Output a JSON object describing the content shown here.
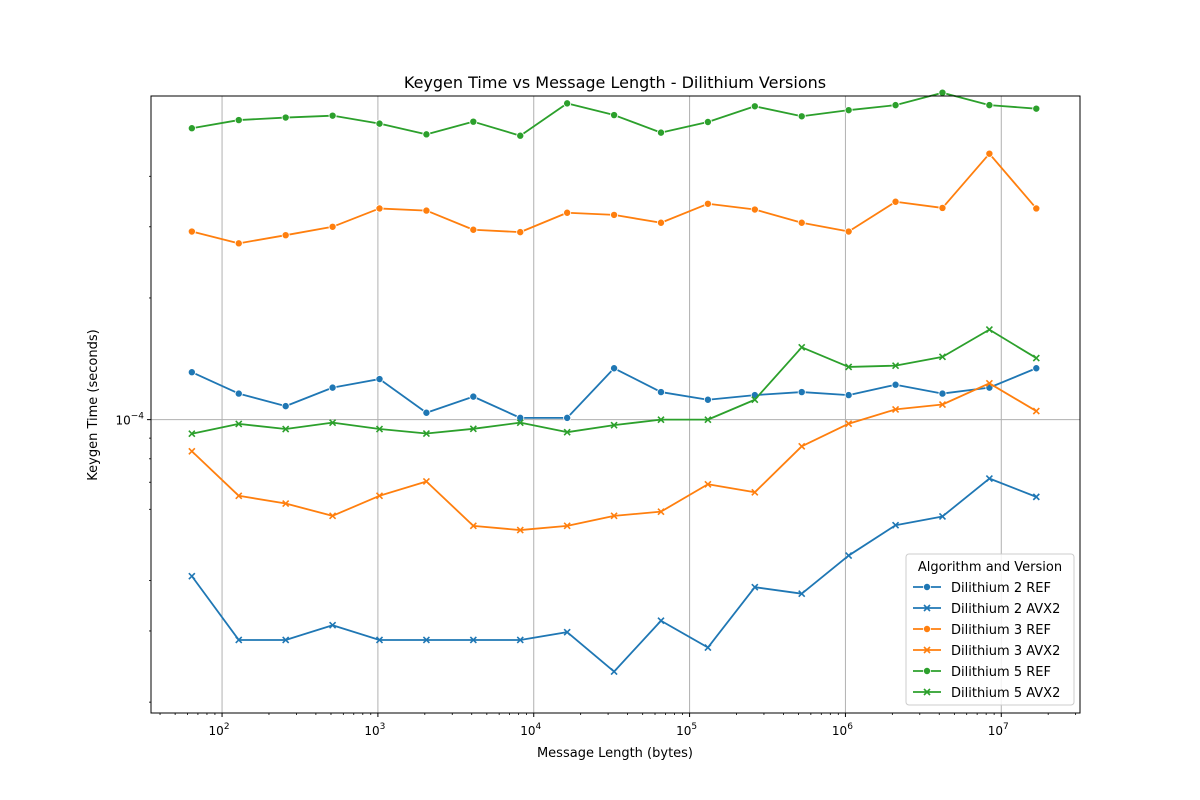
{
  "chart_data": {
    "type": "line",
    "title": "Keygen Time vs Message Length - Dilithium Versions",
    "xlabel": "Message Length (bytes)",
    "ylabel": "Keygen Time (seconds)",
    "x_scale": "log",
    "y_scale": "log",
    "xlim": [
      35,
      32000000
    ],
    "ylim": [
      1.88e-05,
      0.000632
    ],
    "x_major_ticks": [
      {
        "value": 100,
        "base": "10",
        "exp": "2"
      },
      {
        "value": 1000,
        "base": "10",
        "exp": "3"
      },
      {
        "value": 10000,
        "base": "10",
        "exp": "4"
      },
      {
        "value": 100000,
        "base": "10",
        "exp": "5"
      },
      {
        "value": 1000000,
        "base": "10",
        "exp": "6"
      },
      {
        "value": 10000000,
        "base": "10",
        "exp": "7"
      }
    ],
    "y_major_ticks": [
      {
        "value": 0.0001,
        "base": "10",
        "exp": "−4"
      }
    ],
    "y_minor_ticks": [
      2e-05,
      3e-05,
      4e-05,
      6e-05,
      7e-05,
      8e-05,
      9e-05,
      0.0002,
      0.0003,
      0.0004
    ],
    "grid": true,
    "legend": {
      "title": "Algorithm and Version",
      "placement": "lower-right"
    },
    "x": [
      64,
      128,
      256,
      512,
      1024,
      2048,
      4096,
      8192,
      16384,
      32768,
      65536,
      131072,
      262144,
      524288,
      1048576,
      2097152,
      4194304,
      8388608,
      16777216
    ],
    "series": [
      {
        "name": "Dilithium 2 REF",
        "color": "#1f77b4",
        "marker": "circle",
        "values": [
          0.000131,
          0.000116,
          0.000108,
          0.00012,
          0.000126,
          0.000104,
          0.000114,
          0.000101,
          0.000101,
          0.000134,
          0.000117,
          0.000112,
          0.000115,
          0.000117,
          0.000115,
          0.000122,
          0.000116,
          0.00012,
          0.000134
        ]
      },
      {
        "name": "Dilithium 2 AVX2",
        "color": "#1f77b4",
        "marker": "x",
        "values": [
          4.1e-05,
          2.85e-05,
          2.85e-05,
          3.1e-05,
          2.85e-05,
          2.85e-05,
          2.85e-05,
          2.85e-05,
          2.98e-05,
          2.38e-05,
          3.18e-05,
          2.73e-05,
          3.85e-05,
          3.71e-05,
          4.61e-05,
          5.48e-05,
          5.76e-05,
          7.15e-05,
          6.44e-05
        ]
      },
      {
        "name": "Dilithium 3 REF",
        "color": "#ff7f0e",
        "marker": "circle",
        "values": [
          0.000292,
          0.000273,
          0.000286,
          0.0003,
          0.000333,
          0.000329,
          0.000295,
          0.000291,
          0.000325,
          0.000321,
          0.000307,
          0.000342,
          0.000331,
          0.000307,
          0.000292,
          0.000346,
          0.000334,
          0.000455,
          0.000333
        ]
      },
      {
        "name": "Dilithium 3 AVX2",
        "color": "#ff7f0e",
        "marker": "x",
        "values": [
          8.35e-05,
          6.48e-05,
          6.2e-05,
          5.78e-05,
          6.48e-05,
          7.03e-05,
          5.46e-05,
          5.33e-05,
          5.46e-05,
          5.78e-05,
          5.92e-05,
          6.92e-05,
          6.61e-05,
          8.59e-05,
          9.77e-05,
          0.000106,
          0.000109,
          0.000123,
          0.000105
        ]
      },
      {
        "name": "Dilithium 5 REF",
        "color": "#2ca02c",
        "marker": "circle",
        "values": [
          0.000526,
          0.000551,
          0.000559,
          0.000565,
          0.00054,
          0.000508,
          0.000546,
          0.000504,
          0.000606,
          0.000567,
          0.000513,
          0.000545,
          0.000596,
          0.000563,
          0.000583,
          0.0006,
          0.000644,
          0.0006,
          0.000588
        ]
      },
      {
        "name": "Dilithium 5 AVX2",
        "color": "#2ca02c",
        "marker": "x",
        "values": [
          9.23e-05,
          9.76e-05,
          9.48e-05,
          9.83e-05,
          9.48e-05,
          9.24e-05,
          9.49e-05,
          9.83e-05,
          9.31e-05,
          9.69e-05,
          0.0001,
          0.0001,
          0.000112,
          0.000151,
          0.000135,
          0.000136,
          0.000143,
          0.000167,
          0.000142
        ]
      }
    ]
  }
}
